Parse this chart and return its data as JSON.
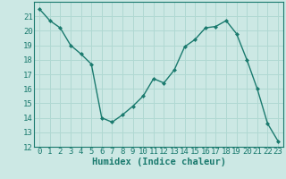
{
  "x": [
    0,
    1,
    2,
    3,
    4,
    5,
    6,
    7,
    8,
    9,
    10,
    11,
    12,
    13,
    14,
    15,
    16,
    17,
    18,
    19,
    20,
    21,
    22,
    23
  ],
  "y": [
    21.5,
    20.7,
    20.2,
    19.0,
    18.4,
    17.7,
    14.0,
    13.7,
    14.2,
    14.8,
    15.5,
    16.7,
    16.4,
    17.3,
    18.9,
    19.4,
    20.2,
    20.3,
    20.7,
    19.8,
    18.0,
    16.0,
    13.6,
    12.4
  ],
  "xlabel": "Humidex (Indice chaleur)",
  "ylim": [
    12,
    22
  ],
  "xlim": [
    -0.5,
    23.5
  ],
  "yticks": [
    12,
    13,
    14,
    15,
    16,
    17,
    18,
    19,
    20,
    21
  ],
  "xticks": [
    0,
    1,
    2,
    3,
    4,
    5,
    6,
    7,
    8,
    9,
    10,
    11,
    12,
    13,
    14,
    15,
    16,
    17,
    18,
    19,
    20,
    21,
    22,
    23
  ],
  "line_color": "#1a7a6e",
  "marker": "D",
  "marker_size": 2.0,
  "bg_color": "#cce8e4",
  "grid_color": "#b0d8d2",
  "axis_color": "#1a7a6e",
  "xlabel_fontsize": 7.5,
  "tick_fontsize": 6.5
}
